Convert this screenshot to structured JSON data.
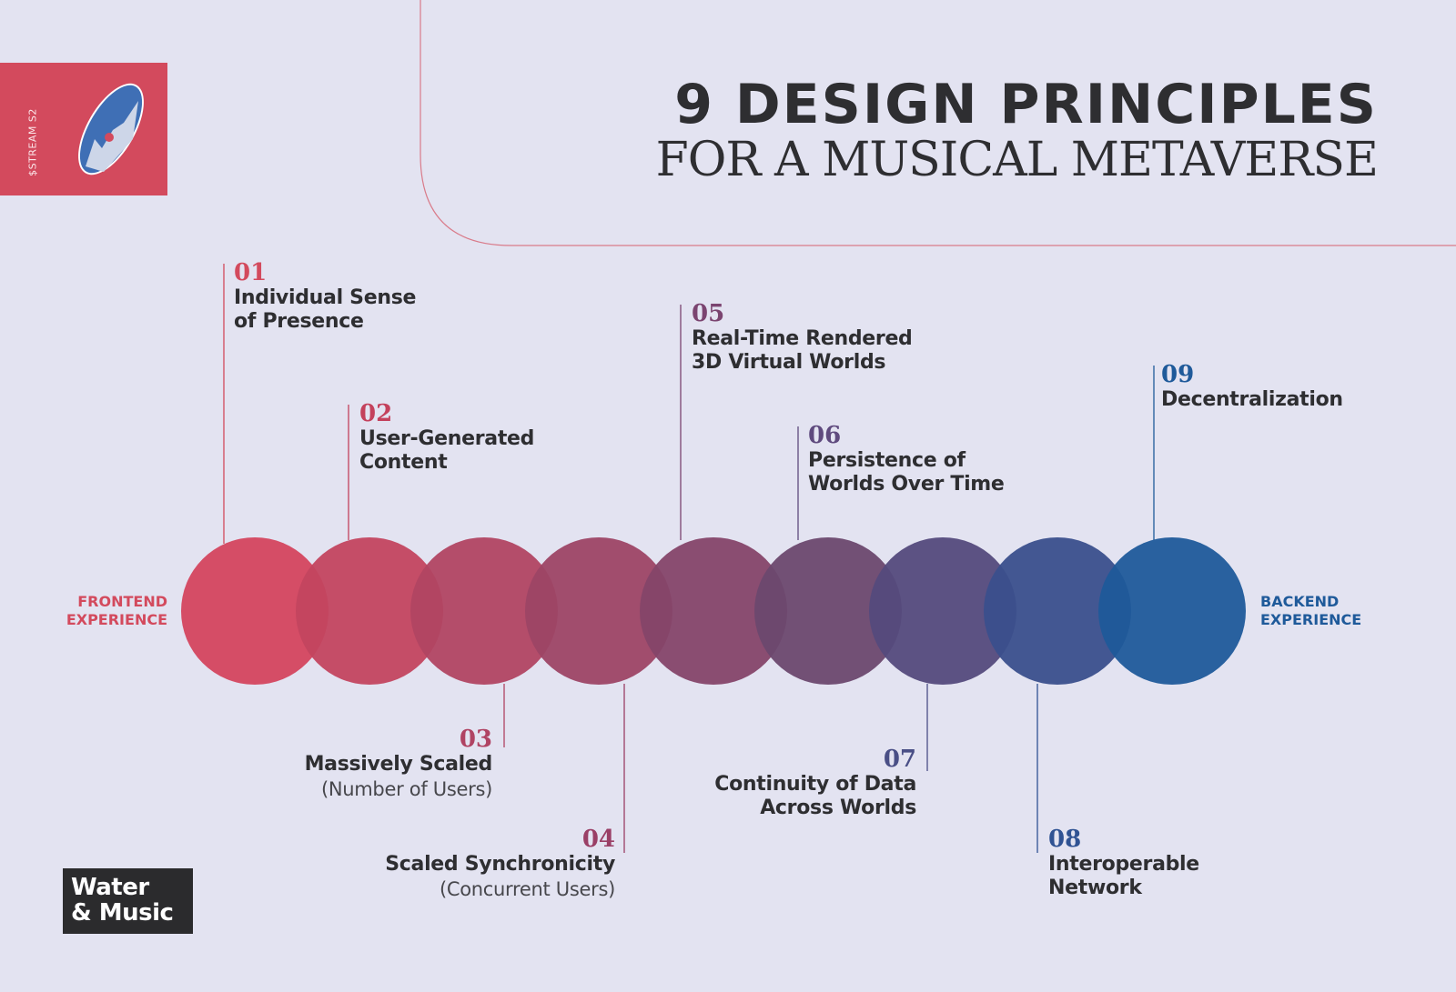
{
  "badge": {
    "text": "$STREAM S2"
  },
  "title": {
    "line1": "9 DESIGN PRINCIPLES",
    "line2": "FOR A MUSICAL METAVERSE"
  },
  "ends": {
    "front": {
      "line1": "FRONTEND",
      "line2": "EXPERIENCE",
      "color": "#d34a5d"
    },
    "back": {
      "line1": "BACKEND",
      "line2": "EXPERIENCE",
      "color": "#1f5a9a"
    }
  },
  "circle_colors": [
    "#d4445e",
    "#c3445f",
    "#b14562",
    "#9d4565",
    "#854569",
    "#6b486e",
    "#544a7c",
    "#3a4f8c",
    "#1f5a9a"
  ],
  "principles": [
    {
      "num": "01",
      "label1": "Individual Sense",
      "label2": "of Presence",
      "note": "",
      "color": "#d34a5d"
    },
    {
      "num": "02",
      "label1": "User-Generated",
      "label2": "Content",
      "note": "",
      "color": "#c4415c"
    },
    {
      "num": "03",
      "label1": "Massively Scaled",
      "label2": "",
      "note": "(Number of Users)",
      "color": "#b04363"
    },
    {
      "num": "04",
      "label1": "Scaled Synchronicity",
      "label2": "",
      "note": "(Concurrent Users)",
      "color": "#9a3f66"
    },
    {
      "num": "05",
      "label1": "Real-Time Rendered",
      "label2": "3D Virtual Worlds",
      "note": "",
      "color": "#7b4470"
    },
    {
      "num": "06",
      "label1": "Persistence of",
      "label2": "Worlds Over Time",
      "note": "",
      "color": "#5f4a7e"
    },
    {
      "num": "07",
      "label1": "Continuity of Data",
      "label2": "Across Worlds",
      "note": "",
      "color": "#4a4f86"
    },
    {
      "num": "08",
      "label1": "Interoperable",
      "label2": "Network",
      "note": "",
      "color": "#2f5293"
    },
    {
      "num": "09",
      "label1": "Decentralization",
      "label2": "",
      "note": "",
      "color": "#1f5a9a"
    }
  ],
  "logo": {
    "line1": "Water",
    "line2": "& Music"
  }
}
